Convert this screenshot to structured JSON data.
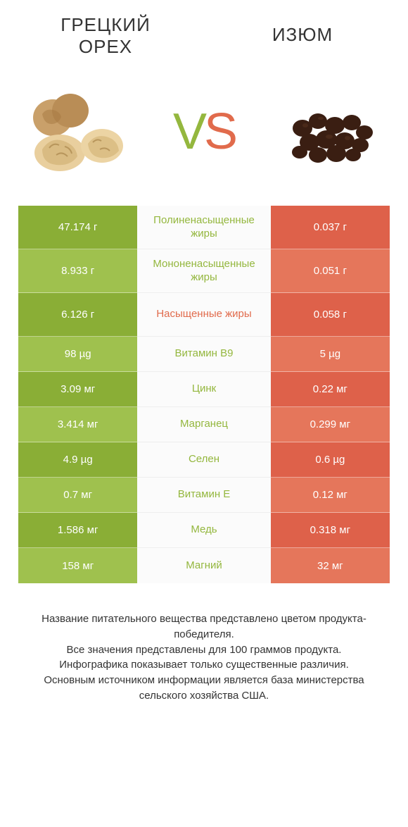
{
  "header": {
    "left_title": "ГРЕЦКИЙ ОРЕХ",
    "right_title": "ИЗЮМ"
  },
  "colors": {
    "green_dark": "#8aae36",
    "green_light": "#9fc14e",
    "orange_dark": "#de614a",
    "orange_light": "#e5765b",
    "mid_text_green": "#94b73e",
    "mid_text_orange": "#e16b4c",
    "background": "#ffffff",
    "text": "#333333"
  },
  "vs": {
    "v": "V",
    "s": "S"
  },
  "table": {
    "row_height_multiline": 62,
    "row_height_single": 50,
    "rows": [
      {
        "left": "47.174 г",
        "mid": "Полиненасыщенные жиры",
        "right": "0.037 г",
        "winner": "left",
        "multiline": true
      },
      {
        "left": "8.933 г",
        "mid": "Мононенасыщенные жиры",
        "right": "0.051 г",
        "winner": "left",
        "multiline": true
      },
      {
        "left": "6.126 г",
        "mid": "Насыщенные жиры",
        "right": "0.058 г",
        "winner": "right",
        "multiline": true
      },
      {
        "left": "98 µg",
        "mid": "Витамин B9",
        "right": "5 µg",
        "winner": "left",
        "multiline": false
      },
      {
        "left": "3.09 мг",
        "mid": "Цинк",
        "right": "0.22 мг",
        "winner": "left",
        "multiline": false
      },
      {
        "left": "3.414 мг",
        "mid": "Марганец",
        "right": "0.299 мг",
        "winner": "left",
        "multiline": false
      },
      {
        "left": "4.9 µg",
        "mid": "Селен",
        "right": "0.6 µg",
        "winner": "left",
        "multiline": false
      },
      {
        "left": "0.7 мг",
        "mid": "Витамин E",
        "right": "0.12 мг",
        "winner": "left",
        "multiline": false
      },
      {
        "left": "1.586 мг",
        "mid": "Медь",
        "right": "0.318 мг",
        "winner": "left",
        "multiline": false
      },
      {
        "left": "158 мг",
        "mid": "Магний",
        "right": "32 мг",
        "winner": "left",
        "multiline": false
      }
    ]
  },
  "footer": {
    "line1": "Название питательного вещества представлено цветом продукта-победителя.",
    "line2": "Все значения представлены для 100 граммов продукта.",
    "line3": "Инфографика показывает только существенные различия.",
    "line4": "Основным источником информации является база министерства сельского хозяйства США."
  }
}
